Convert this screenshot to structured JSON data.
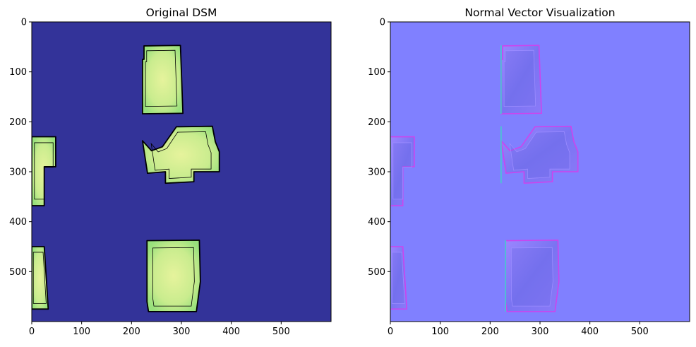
{
  "chart_data": [
    {
      "type": "heatmap",
      "title": "Original DSM",
      "xlabel": "",
      "ylabel": "",
      "xlim": [
        0,
        600
      ],
      "ylim": [
        600,
        0
      ],
      "xticks": [
        0,
        100,
        200,
        300,
        400,
        500
      ],
      "yticks": [
        0,
        100,
        200,
        300,
        400,
        500
      ],
      "grid": false,
      "colors": {
        "background": "#333399",
        "roof_edge": "#9be27e",
        "roof_center": "#dff29a",
        "contour": "#000000"
      },
      "buildings": [
        {
          "name": "building-top",
          "outline": [
            [
              225,
              48
            ],
            [
              298,
              47
            ],
            [
              303,
              183
            ],
            [
              222,
              184
            ],
            [
              222,
              75
            ],
            [
              225,
              75
            ]
          ]
        },
        {
          "name": "building-middle",
          "outline": [
            [
              222,
              238
            ],
            [
              240,
              258
            ],
            [
              262,
              250
            ],
            [
              290,
              210
            ],
            [
              362,
              209
            ],
            [
              368,
              240
            ],
            [
              376,
              260
            ],
            [
              376,
              300
            ],
            [
              325,
              300
            ],
            [
              325,
              320
            ],
            [
              268,
              323
            ],
            [
              268,
              300
            ],
            [
              232,
              303
            ]
          ]
        },
        {
          "name": "building-bottom",
          "outline": [
            [
              231,
              438
            ],
            [
              336,
              437
            ],
            [
              338,
              520
            ],
            [
              330,
              580
            ],
            [
              234,
              580
            ],
            [
              231,
              560
            ]
          ]
        },
        {
          "name": "building-left-middle",
          "outline": [
            [
              0,
              230
            ],
            [
              48,
              230
            ],
            [
              48,
              290
            ],
            [
              25,
              290
            ],
            [
              25,
              368
            ],
            [
              0,
              368
            ]
          ]
        },
        {
          "name": "building-left-bottom",
          "outline": [
            [
              0,
              450
            ],
            [
              25,
              450
            ],
            [
              33,
              575
            ],
            [
              0,
              575
            ]
          ]
        }
      ]
    },
    {
      "type": "heatmap",
      "title": "Normal Vector Visualization",
      "xlabel": "",
      "ylabel": "",
      "xlim": [
        0,
        600
      ],
      "ylim": [
        600,
        0
      ],
      "xticks": [
        0,
        100,
        200,
        300,
        400,
        500
      ],
      "yticks": [
        0,
        100,
        200,
        300,
        400,
        500
      ],
      "grid": false,
      "colors": {
        "background": "#8080ff",
        "roof": "#7f72f2",
        "roof_light": "#9b8cff",
        "roof_dark": "#6a6be6",
        "edge_magenta": "#cc44ee",
        "edge_cyan": "#44cccc"
      },
      "buildings": [
        {
          "name": "building-top",
          "outline": [
            [
              225,
              48
            ],
            [
              298,
              47
            ],
            [
              303,
              183
            ],
            [
              222,
              184
            ],
            [
              222,
              75
            ],
            [
              225,
              75
            ]
          ]
        },
        {
          "name": "building-middle",
          "outline": [
            [
              222,
              238
            ],
            [
              240,
              258
            ],
            [
              262,
              250
            ],
            [
              290,
              210
            ],
            [
              362,
              209
            ],
            [
              368,
              240
            ],
            [
              376,
              260
            ],
            [
              376,
              300
            ],
            [
              325,
              300
            ],
            [
              325,
              320
            ],
            [
              268,
              323
            ],
            [
              268,
              300
            ],
            [
              232,
              303
            ]
          ]
        },
        {
          "name": "building-bottom",
          "outline": [
            [
              231,
              438
            ],
            [
              336,
              437
            ],
            [
              338,
              520
            ],
            [
              330,
              580
            ],
            [
              234,
              580
            ],
            [
              231,
              560
            ]
          ]
        },
        {
          "name": "building-left-middle",
          "outline": [
            [
              0,
              230
            ],
            [
              48,
              230
            ],
            [
              48,
              290
            ],
            [
              25,
              290
            ],
            [
              25,
              368
            ],
            [
              0,
              368
            ]
          ]
        },
        {
          "name": "building-left-bottom",
          "outline": [
            [
              0,
              450
            ],
            [
              25,
              450
            ],
            [
              33,
              575
            ],
            [
              0,
              575
            ]
          ]
        }
      ]
    }
  ]
}
